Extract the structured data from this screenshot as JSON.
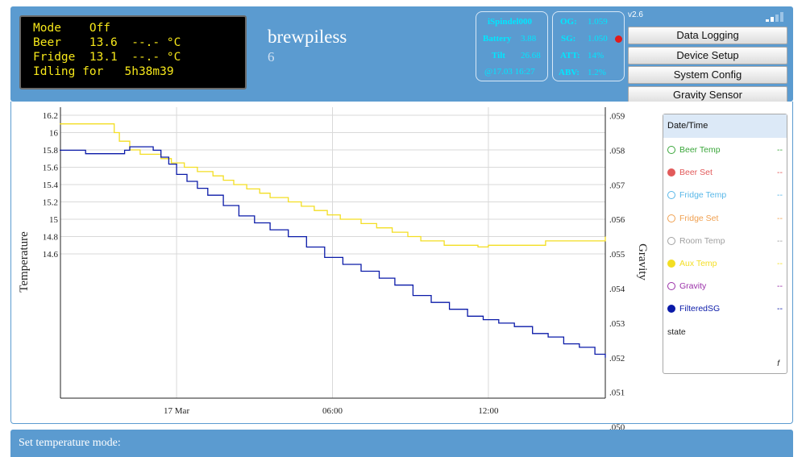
{
  "lcd": {
    "lines": [
      "Mode    Off",
      "Beer    13.6  --.- °C",
      "Fridge  13.1  --.- °C",
      "Idling for   5h38m39"
    ]
  },
  "brand": {
    "title": "brewpiless",
    "subtitle": "6"
  },
  "spindel": {
    "name": "iSpindel000",
    "battery_label": "Battery",
    "battery_value": "3.88",
    "tilt_label": "Tilt",
    "tilt_value": "26.68",
    "timestamp": "@17.03 16:27"
  },
  "gravity": {
    "og_label": "OG:",
    "og_value": "1.059",
    "sg_label": "SG:",
    "sg_value": "1.050",
    "att_label": "ATT:",
    "att_value": "14%",
    "abv_label": "ABV:",
    "abv_value": "1.2%"
  },
  "version": "v2.6",
  "menu": {
    "items": [
      "Data Logging",
      "Device Setup",
      "System Config",
      "Gravity Sensor"
    ]
  },
  "bottom": {
    "title": "Set temperature mode:"
  },
  "legend": {
    "header": "Date/Time",
    "items": [
      {
        "name": "Beer Temp",
        "value": "--",
        "color": "#3aa63a",
        "filled": false
      },
      {
        "name": "Beer Set",
        "value": "--",
        "color": "#e25a5a",
        "filled": true
      },
      {
        "name": "Fridge Temp",
        "value": "--",
        "color": "#58b7e8",
        "filled": false
      },
      {
        "name": "Fridge Set",
        "value": "--",
        "color": "#f0a050",
        "filled": false
      },
      {
        "name": "Room Temp",
        "value": "--",
        "color": "#a0a0a0",
        "filled": false
      },
      {
        "name": "Aux Temp",
        "value": "--",
        "color": "#f3de22",
        "filled": true
      },
      {
        "name": "Gravity",
        "value": "--",
        "color": "#9a2fa8",
        "filled": false
      },
      {
        "name": "FilteredSG",
        "value": "--",
        "color": "#0a1aa8",
        "filled": true
      },
      {
        "name": "state",
        "value": "",
        "color": "#222222",
        "filled": null
      }
    ],
    "footer": "f"
  },
  "chart_data": {
    "type": "line",
    "ylabel": "Temperature",
    "y2label": "Gravity",
    "ylim": [
      14.55,
      16.22
    ],
    "y2lim": [
      0.0496,
      0.0593
    ],
    "yticks": [
      "16.2",
      "16",
      "15.8",
      "15.6",
      "15.4",
      "15.2",
      "15",
      "14.8",
      "14.6"
    ],
    "y2ticks": [
      ".059",
      ".058",
      ".057",
      ".056",
      ".055",
      ".054",
      ".053",
      ".052",
      ".051",
      ".050"
    ],
    "xticks": [
      {
        "label": "17 Mar",
        "hour": 0
      },
      {
        "label": "06:00",
        "hour": 6
      },
      {
        "label": "12:00",
        "hour": 12
      }
    ],
    "xlim": [
      -4.5,
      16.5
    ],
    "grid": true,
    "series": [
      {
        "name": "Aux Temp",
        "axis": "left",
        "color": "#f3de22",
        "x": [
          -4.5,
          -2.8,
          -2.4,
          -2.2,
          -1.8,
          -1.4,
          -0.6,
          -0.2,
          0.3,
          0.8,
          1.4,
          1.8,
          2.2,
          2.7,
          3.2,
          3.6,
          4.3,
          4.8,
          5.3,
          5.8,
          6.3,
          7.1,
          7.7,
          8.3,
          8.9,
          9.4,
          9.9,
          10.3,
          11.4,
          11.6,
          12.0,
          13.0,
          14.2,
          15.3,
          16.3,
          16.5
        ],
        "y": [
          16.1,
          16.1,
          16.0,
          15.9,
          15.8,
          15.75,
          15.7,
          15.65,
          15.6,
          15.55,
          15.5,
          15.45,
          15.4,
          15.35,
          15.3,
          15.25,
          15.2,
          15.15,
          15.1,
          15.05,
          15.0,
          14.95,
          14.9,
          14.85,
          14.8,
          14.75,
          14.75,
          14.7,
          14.7,
          14.68,
          14.7,
          14.7,
          14.75,
          14.75,
          14.75,
          14.8
        ]
      },
      {
        "name": "FilteredSG",
        "axis": "right",
        "color": "#0a1aa8",
        "x": [
          -4.5,
          -3.5,
          -2.6,
          -2.0,
          -1.8,
          -1.6,
          -1.3,
          -0.9,
          -0.6,
          -0.3,
          0.0,
          0.4,
          0.8,
          1.2,
          1.8,
          2.4,
          3.0,
          3.6,
          4.3,
          5.0,
          5.7,
          6.4,
          7.1,
          7.8,
          8.4,
          9.1,
          9.8,
          10.5,
          11.2,
          11.8,
          12.4,
          13.0,
          13.7,
          14.3,
          14.9,
          15.5,
          16.1,
          16.5
        ],
        "y": [
          0.058,
          0.0579,
          0.0579,
          0.058,
          0.0581,
          0.0581,
          0.0581,
          0.058,
          0.0578,
          0.0576,
          0.0573,
          0.0571,
          0.0569,
          0.0567,
          0.0564,
          0.0561,
          0.0559,
          0.0557,
          0.0555,
          0.0552,
          0.0549,
          0.0547,
          0.0545,
          0.0543,
          0.0541,
          0.0538,
          0.0536,
          0.0534,
          0.0532,
          0.0531,
          0.053,
          0.0529,
          0.0527,
          0.0526,
          0.0524,
          0.0523,
          0.0521,
          0.052
        ]
      }
    ]
  }
}
